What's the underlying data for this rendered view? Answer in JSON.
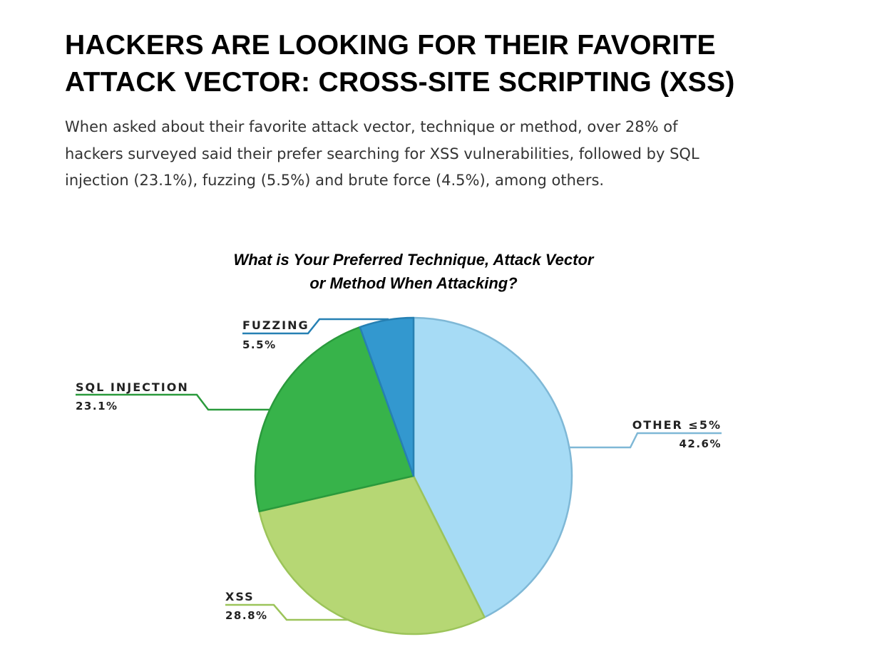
{
  "headline": {
    "line1": "HACKERS ARE LOOKING FOR THEIR FAVORITE",
    "line2": "ATTACK VECTOR: CROSS-SITE SCRIPTING (XSS)"
  },
  "intro": {
    "line1": "When asked about their favorite attack vector, technique or method, over 28% of",
    "line2": "hackers surveyed said their prefer searching for XSS vulnerabilities, followed by SQL",
    "line3": "injection (23.1%), fuzzing (5.5%) and brute force (4.5%), among others."
  },
  "chart_data": {
    "type": "pie",
    "title_line1": "What is Your Preferred Technique, Attack Vector",
    "title_line2": "or Method When Attacking?",
    "slices": [
      {
        "label": "OTHER ≤5%",
        "value": 42.6,
        "value_label": "42.6%",
        "color": "#a6dbf5",
        "stroke": "#7fb8d6"
      },
      {
        "label": "XSS",
        "value": 28.8,
        "value_label": "28.8%",
        "color": "#b6d774",
        "stroke": "#9cc45a"
      },
      {
        "label": "SQL INJECTION",
        "value": 23.1,
        "value_label": "23.1%",
        "color": "#37b34a",
        "stroke": "#2a9a3c"
      },
      {
        "label": "FUZZING",
        "value": 5.5,
        "value_label": "5.5%",
        "color": "#3398cf",
        "stroke": "#2680b3"
      }
    ]
  }
}
